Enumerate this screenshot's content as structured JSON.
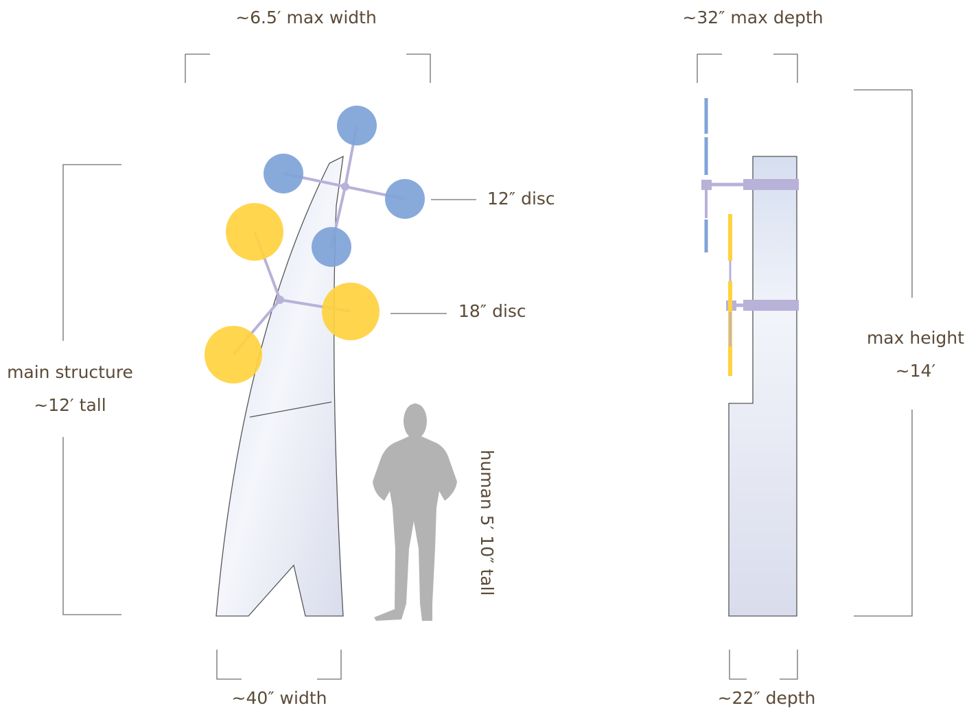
{
  "labels": {
    "max_width": "~6.5′ max width",
    "max_depth": "~32″ max depth",
    "disc_12": "12″ disc",
    "disc_18": "18″ disc",
    "main_structure": "main structure",
    "main_tall": "~12′ tall",
    "max_height": "max height",
    "max_height_value": "~14′",
    "human": "human 5′ 10″ tall",
    "width": "~40″ width",
    "depth": "~22″ depth"
  }
}
